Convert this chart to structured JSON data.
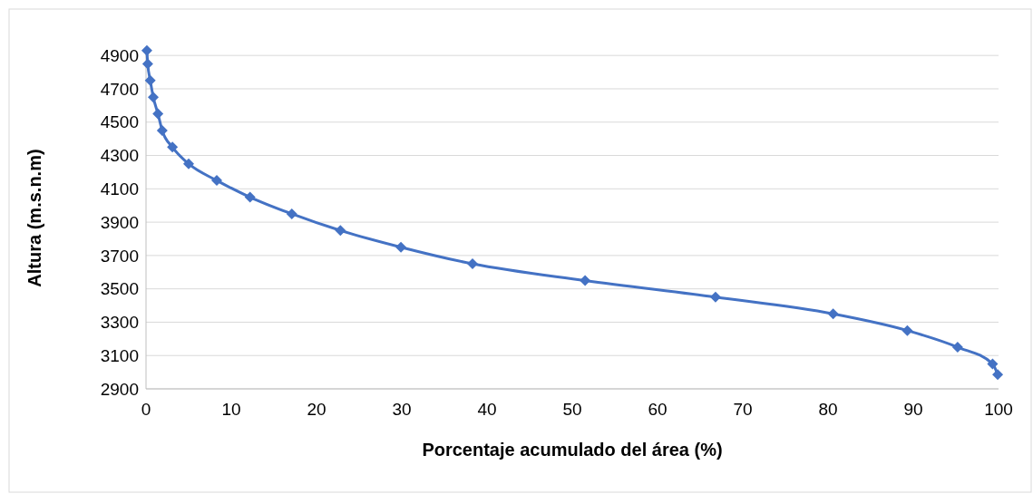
{
  "chart_data": {
    "type": "line",
    "xlabel": "Porcentaje acumulado del área (%)",
    "ylabel": "Altura (m.s.n.m)",
    "x": [
      0.1,
      0.2,
      0.5,
      0.85,
      1.4,
      1.9,
      3.1,
      5.0,
      8.3,
      12.2,
      17.1,
      22.8,
      29.9,
      38.3,
      51.5,
      66.8,
      80.6,
      89.3,
      95.2,
      99.3,
      99.9
    ],
    "series": [
      {
        "color": "#4472c4",
        "values": [
          4930,
          4850,
          4750,
          4650,
          4550,
          4450,
          4350,
          4250,
          4150,
          4050,
          3950,
          3850,
          3750,
          3650,
          3550,
          3450,
          3350,
          3250,
          3150,
          3050,
          2985
        ]
      }
    ],
    "xlim": [
      0,
      100
    ],
    "xticks": [
      0,
      10,
      20,
      30,
      40,
      50,
      60,
      70,
      80,
      90,
      100
    ],
    "ylim": [
      2900,
      4950
    ],
    "yticks": [
      2900,
      3100,
      3300,
      3500,
      3700,
      3900,
      4100,
      4300,
      4500,
      4700,
      4900
    ],
    "grid": "y",
    "marker": "diamond",
    "line_style": "solid"
  }
}
